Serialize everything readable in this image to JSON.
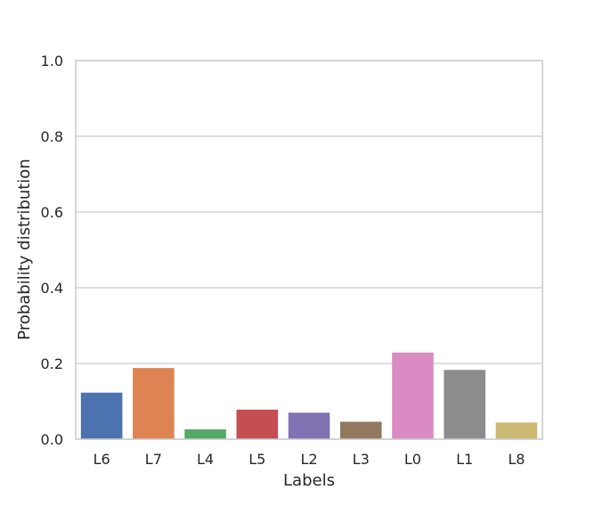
{
  "chart_data": {
    "type": "bar",
    "categories": [
      "L6",
      "L7",
      "L4",
      "L5",
      "L2",
      "L3",
      "L0",
      "L1",
      "L8"
    ],
    "values": [
      0.123,
      0.188,
      0.026,
      0.078,
      0.07,
      0.046,
      0.229,
      0.183,
      0.044
    ],
    "colors": [
      "#4c72b0",
      "#dd8452",
      "#55a868",
      "#c44e52",
      "#8172b3",
      "#937860",
      "#da8bc3",
      "#8c8c8c",
      "#ccb974"
    ],
    "xlabel": "Labels",
    "ylabel": "Probability distribution",
    "ylim": [
      0,
      1.0
    ],
    "yticks": [
      "0.0",
      "0.2",
      "0.4",
      "0.6",
      "0.8",
      "1.0"
    ],
    "grid": true,
    "legend": "none"
  }
}
